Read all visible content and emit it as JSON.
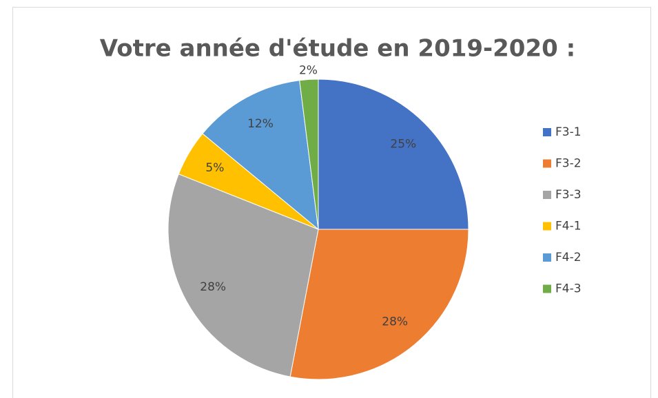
{
  "chart_data": {
    "type": "pie",
    "title": "Votre année d'étude en 2019-2020 :",
    "categories": [
      "F3-1",
      "F3-2",
      "F3-3",
      "F4-1",
      "F4-2",
      "F4-3"
    ],
    "values": [
      25,
      28,
      28,
      5,
      12,
      2
    ],
    "value_labels": [
      "25%",
      "28%",
      "28%",
      "5%",
      "12%",
      "2%"
    ],
    "colors": [
      "#4472c4",
      "#ed7d31",
      "#a5a5a5",
      "#ffc000",
      "#5b9bd5",
      "#70ad47"
    ],
    "legend": "right"
  }
}
